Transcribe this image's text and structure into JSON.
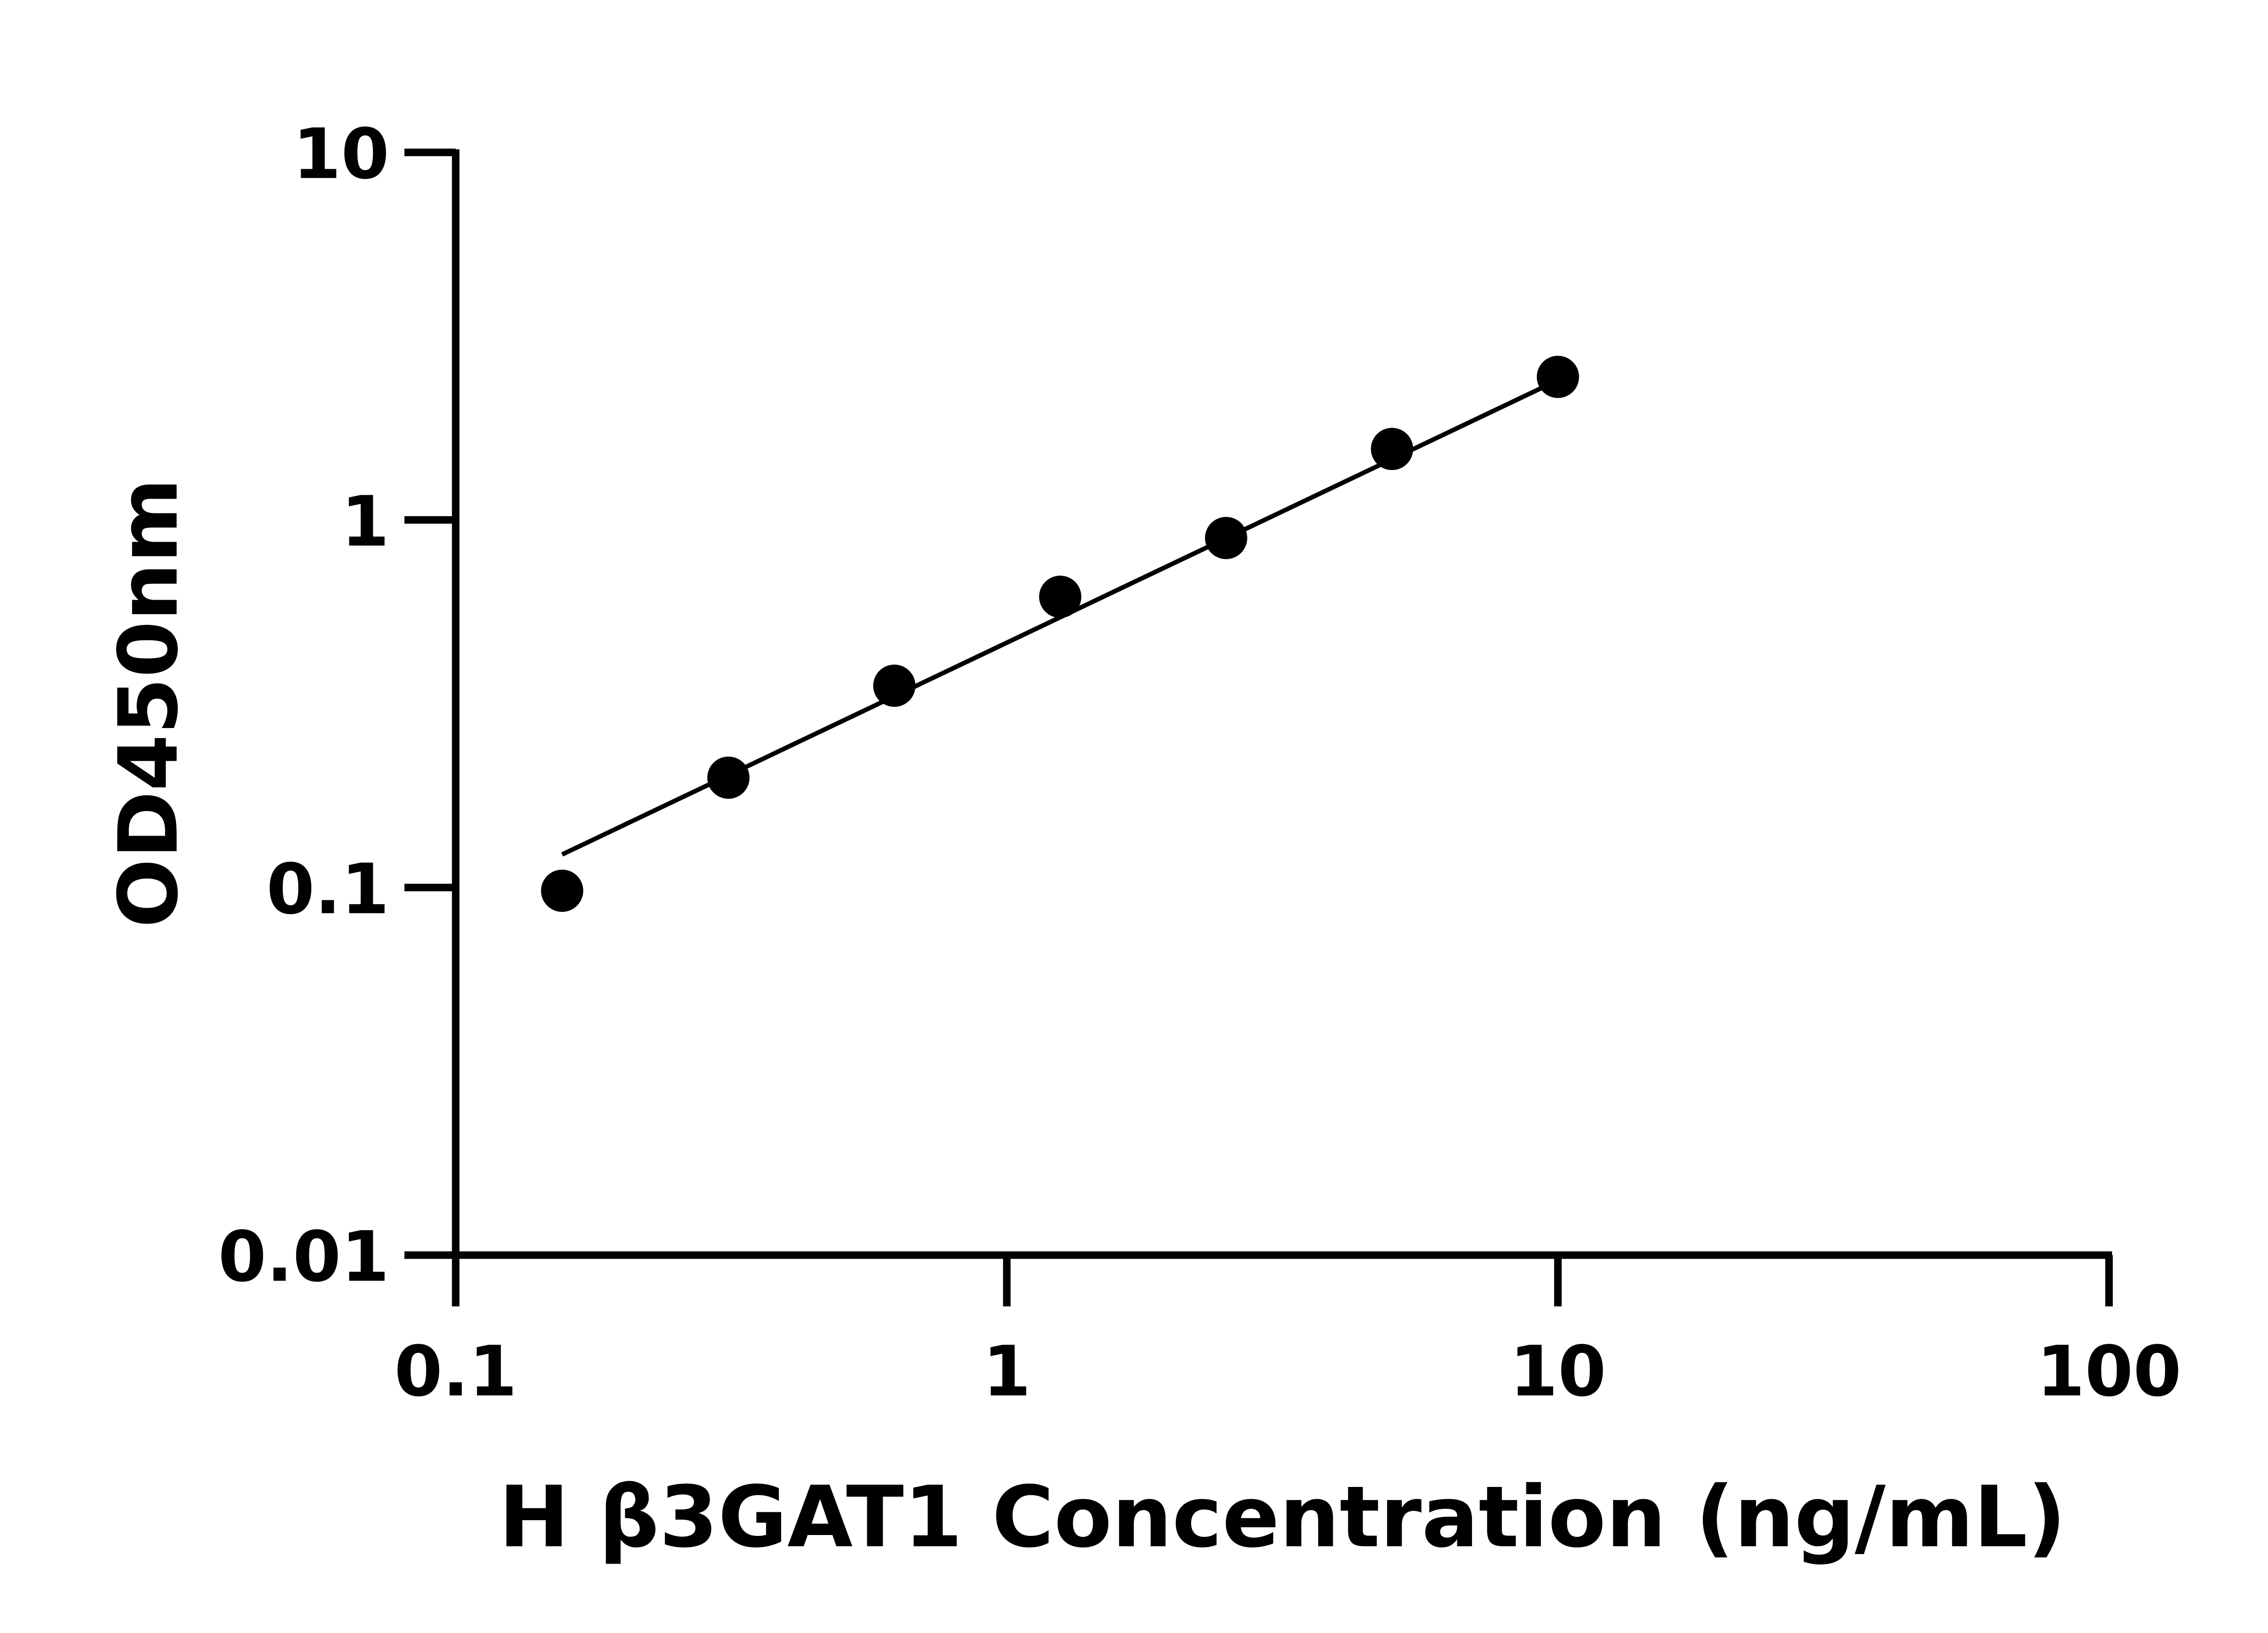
{
  "chart_data": {
    "type": "scatter",
    "title": "",
    "xlabel": "H β3GAT1 Concentration (ng/mL)",
    "ylabel": "OD450nm",
    "x_scale": "log",
    "y_scale": "log",
    "xlim": [
      0.1,
      100
    ],
    "ylim": [
      0.01,
      10
    ],
    "x_ticks": [
      "0.1",
      "1",
      "10",
      "100"
    ],
    "y_ticks": [
      "0.01",
      "0.1",
      "1",
      "10"
    ],
    "grid": false,
    "marker_color": "#000000",
    "points": [
      {
        "x": 0.156,
        "y": 0.098
      },
      {
        "x": 0.3125,
        "y": 0.199
      },
      {
        "x": 0.625,
        "y": 0.354
      },
      {
        "x": 1.25,
        "y": 0.618
      },
      {
        "x": 2.5,
        "y": 0.893
      },
      {
        "x": 5,
        "y": 1.56
      },
      {
        "x": 10,
        "y": 2.45
      }
    ],
    "fit_line": {
      "x": [
        0.156,
        10
      ],
      "y": [
        0.123,
        2.4
      ]
    }
  }
}
